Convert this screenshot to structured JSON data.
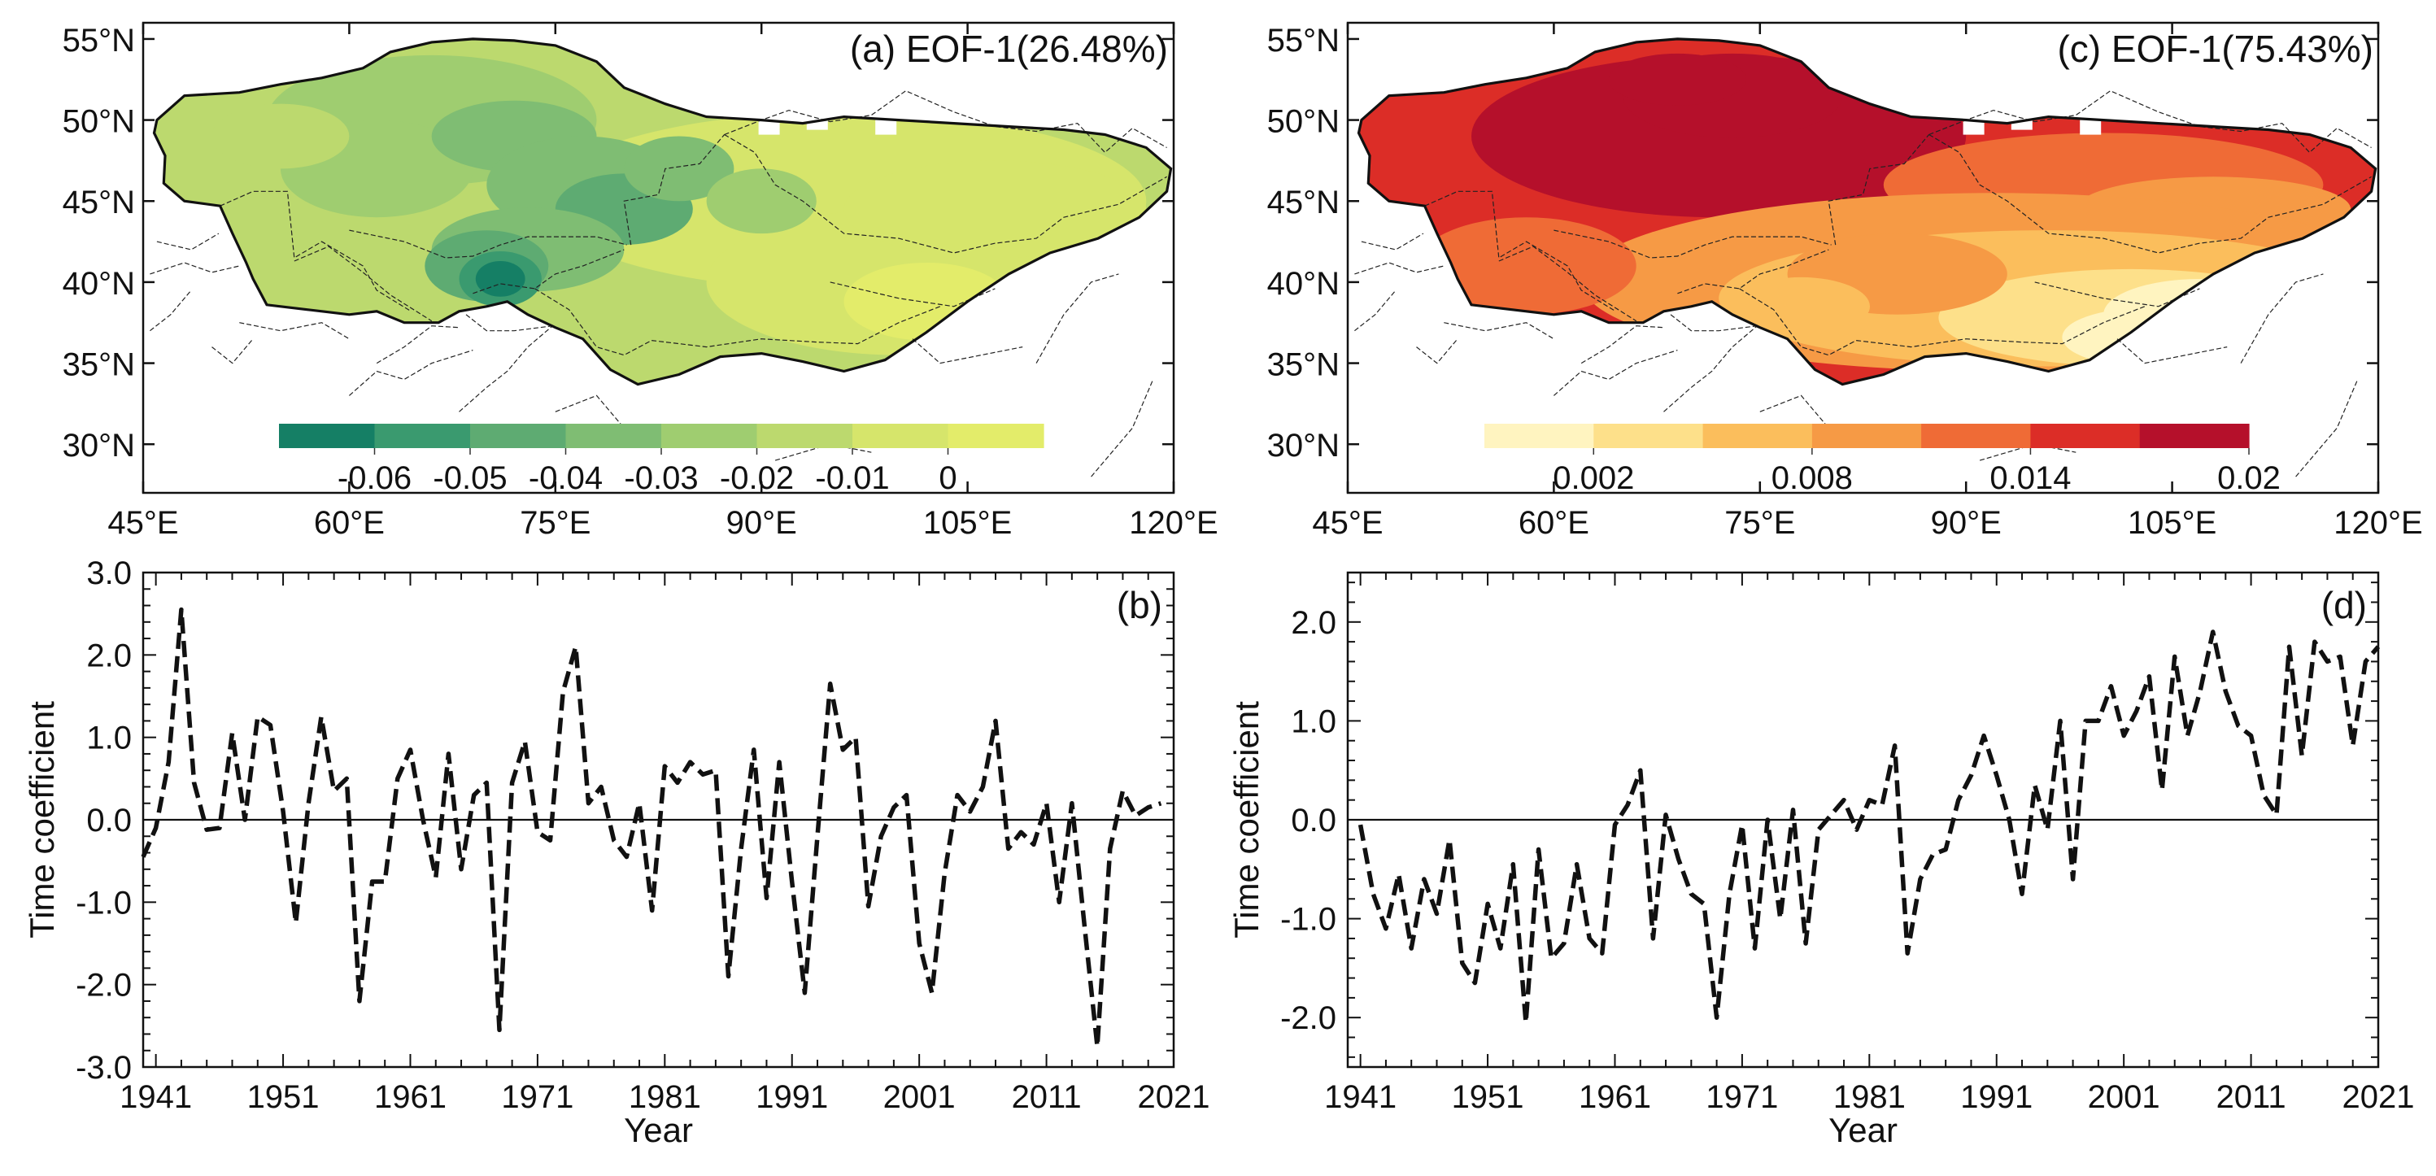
{
  "figure": {
    "panel_a": {
      "label": "(a)",
      "title": "(a) EOF-1(26.48%)",
      "lat_ticks": [
        "30°N",
        "35°N",
        "40°N",
        "45°N",
        "50°N",
        "55°N"
      ],
      "lon_ticks": [
        "45°E",
        "60°E",
        "75°E",
        "90°E",
        "105°E",
        "120°E"
      ],
      "colorbar_labels": [
        "-0.06",
        "-0.05",
        "-0.04",
        "-0.03",
        "-0.02",
        "-0.01",
        "0"
      ],
      "palette": [
        "#157f65",
        "#3a9a6f",
        "#5eab72",
        "#7fbd73",
        "#9fcd70",
        "#bcd96e",
        "#d6e56b",
        "#e3ec6a"
      ]
    },
    "panel_b": {
      "label": "(b)"
    },
    "panel_c": {
      "label": "(c)",
      "title": "(c) EOF-1(75.43%)",
      "lat_ticks": [
        "30°N",
        "35°N",
        "40°N",
        "45°N",
        "50°N",
        "55°N"
      ],
      "lon_ticks": [
        "45°E",
        "60°E",
        "75°E",
        "90°E",
        "105°E",
        "120°E"
      ],
      "colorbar_labels": [
        "0.002",
        "0.008",
        "0.014",
        "0.02"
      ],
      "palette": [
        "#fff4c0",
        "#fde08a",
        "#fbbe5c",
        "#f69a45",
        "#ef6b36",
        "#dc2d27",
        "#b5102b"
      ]
    },
    "panel_d": {
      "label": "(d)"
    }
  },
  "chart_data": [
    {
      "type": "map",
      "id": "a",
      "title": "(a) EOF-1(26.48%)",
      "lon_range": [
        45,
        120
      ],
      "lat_range": [
        27,
        56
      ],
      "colorbar": [
        "-0.06",
        "-0.05",
        "-0.04",
        "-0.03",
        "-0.02",
        "-0.01",
        "0"
      ]
    },
    {
      "type": "map",
      "id": "c",
      "title": "(c) EOF-1(75.43%)",
      "lon_range": [
        45,
        120
      ],
      "lat_range": [
        27,
        56
      ],
      "colorbar": [
        "0.002",
        "0.008",
        "0.014",
        "0.02"
      ]
    },
    {
      "type": "line",
      "id": "b",
      "title": "(b)",
      "xlabel": "Year",
      "ylabel": "Time coefficient",
      "xlim": [
        1940,
        2021
      ],
      "ylim": [
        -3.0,
        3.0
      ],
      "xticks": [
        "1941",
        "1951",
        "1961",
        "1971",
        "1981",
        "1991",
        "2001",
        "2011",
        "2021"
      ],
      "yticks": [
        "3.0",
        "2.0",
        "1.0",
        "0.0",
        "-1.0",
        "-2.0",
        "-3.0"
      ],
      "x_start": 1940,
      "values": [
        -0.45,
        -0.1,
        0.7,
        2.55,
        0.45,
        -0.12,
        -0.1,
        1.05,
        0.0,
        1.25,
        1.15,
        0.1,
        -1.25,
        0.2,
        1.25,
        0.35,
        0.5,
        -2.2,
        -0.75,
        -0.75,
        0.5,
        0.85,
        0.0,
        -0.7,
        0.8,
        -0.6,
        0.3,
        0.45,
        -2.55,
        0.45,
        0.95,
        -0.15,
        -0.25,
        1.55,
        2.1,
        0.2,
        0.4,
        -0.25,
        -0.45,
        0.2,
        -1.1,
        0.65,
        0.45,
        0.7,
        0.55,
        0.6,
        -1.9,
        -0.35,
        0.85,
        -0.95,
        0.7,
        -0.75,
        -2.1,
        -0.2,
        1.65,
        0.85,
        1.0,
        -1.05,
        -0.2,
        0.15,
        0.3,
        -1.5,
        -2.1,
        -0.65,
        0.3,
        0.1,
        0.4,
        1.2,
        -0.35,
        -0.15,
        -0.3,
        0.2,
        -1.0,
        0.2,
        -1.3,
        -2.75,
        -0.35,
        0.35,
        0.05,
        0.15,
        0.2
      ]
    },
    {
      "type": "line",
      "id": "d",
      "title": "(d)",
      "xlabel": "Year",
      "ylabel": "Time coefficient",
      "xlim": [
        1940,
        2021
      ],
      "ylim": [
        -2.5,
        2.5
      ],
      "xticks": [
        "1941",
        "1951",
        "1961",
        "1971",
        "1981",
        "1991",
        "2001",
        "2011",
        "2021"
      ],
      "yticks": [
        "2.0",
        "1.0",
        "0.0",
        "-1.0",
        "-2.0"
      ],
      "x_start": 1941,
      "values": [
        -0.05,
        -0.75,
        -1.1,
        -0.55,
        -1.3,
        -0.6,
        -0.95,
        -0.2,
        -1.45,
        -1.65,
        -0.85,
        -1.3,
        -0.45,
        -2.05,
        -0.3,
        -1.4,
        -1.25,
        -0.45,
        -1.2,
        -1.35,
        -0.05,
        0.15,
        0.5,
        -1.2,
        0.05,
        -0.4,
        -0.75,
        -0.85,
        -2.0,
        -0.75,
        -0.05,
        -1.3,
        0.0,
        -1.0,
        0.1,
        -1.25,
        -0.1,
        0.05,
        0.2,
        -0.1,
        0.2,
        0.15,
        0.75,
        -1.35,
        -0.6,
        -0.35,
        -0.3,
        0.2,
        0.45,
        0.85,
        0.45,
        0.0,
        -0.75,
        0.35,
        -0.1,
        1.0,
        -0.6,
        1.0,
        1.0,
        1.35,
        0.85,
        1.1,
        1.45,
        0.3,
        1.65,
        0.85,
        1.3,
        1.9,
        1.3,
        0.95,
        0.85,
        0.25,
        0.05,
        1.75,
        0.65,
        1.8,
        1.6,
        1.65,
        0.75,
        1.6,
        1.75
      ]
    }
  ]
}
